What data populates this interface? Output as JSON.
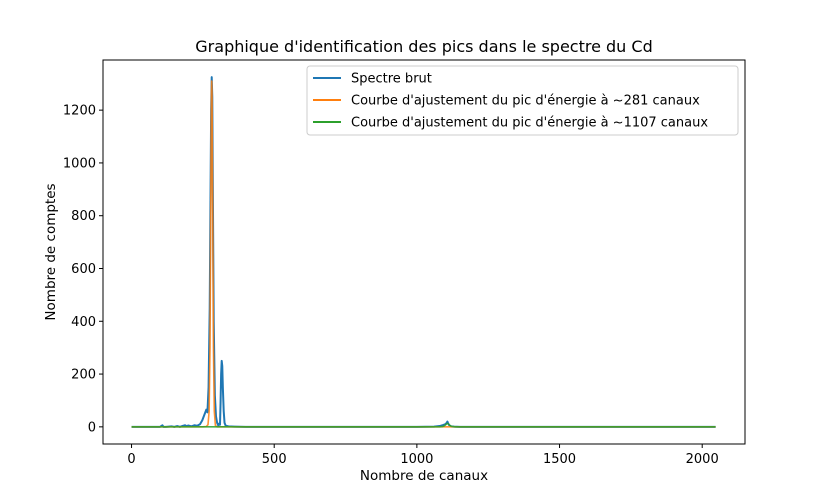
{
  "chart_data": {
    "type": "line",
    "title": "Graphique d'identification des pics dans le spectre du Cd",
    "xlabel": "Nombre de canaux",
    "ylabel": "Nombre de comptes",
    "xlim": [
      -100,
      2150
    ],
    "ylim": [
      -65,
      1390
    ],
    "xticks": [
      0,
      500,
      1000,
      1500,
      2000
    ],
    "yticks": [
      0,
      200,
      400,
      600,
      800,
      1000,
      1200
    ],
    "grid": false,
    "legend_position": "top-right",
    "series": [
      {
        "name": "Spectre brut",
        "color": "#1f77b4",
        "x": [
          0,
          100,
          108,
          112,
          120,
          140,
          150,
          160,
          170,
          180,
          188,
          192,
          200,
          210,
          220,
          230,
          240,
          248,
          255,
          262,
          266,
          270,
          274,
          277,
          279,
          281,
          283,
          285,
          288,
          292,
          296,
          300,
          304,
          307,
          310,
          312,
          314,
          316,
          318,
          320,
          323,
          326,
          330,
          340,
          360,
          400,
          500,
          600,
          700,
          800,
          900,
          1000,
          1060,
          1080,
          1090,
          1095,
          1100,
          1105,
          1107,
          1109,
          1112,
          1116,
          1120,
          1130,
          1150,
          1200,
          1400,
          1600,
          1800,
          2000,
          2047
        ],
        "y": [
          0,
          0,
          6,
          0,
          0,
          2,
          0,
          3,
          0,
          4,
          6,
          3,
          5,
          2,
          6,
          4,
          10,
          25,
          45,
          65,
          55,
          150,
          450,
          900,
          1200,
          1325,
          1250,
          900,
          400,
          120,
          40,
          15,
          5,
          12,
          8,
          90,
          200,
          250,
          230,
          150,
          60,
          15,
          4,
          2,
          1,
          0,
          0,
          0,
          0,
          0,
          0,
          0,
          1,
          3,
          6,
          8,
          10,
          16,
          20,
          15,
          8,
          4,
          2,
          1,
          0,
          0,
          0,
          0,
          0,
          0,
          0
        ]
      },
      {
        "name": "Courbe d'ajustement du pic d'énergie à ~281 canaux",
        "color": "#ff7f0e",
        "x": [
          0,
          250,
          262,
          268,
          272,
          275,
          277,
          279,
          280,
          281,
          282,
          283,
          285,
          287,
          290,
          294,
          300,
          320,
          2047
        ],
        "y": [
          0,
          0,
          1,
          8,
          60,
          300,
          700,
          1100,
          1270,
          1310,
          1270,
          1100,
          700,
          300,
          60,
          5,
          0,
          0,
          0
        ]
      },
      {
        "name": "Courbe d'ajustement du pic d'énergie à ~1107 canaux",
        "color": "#2ca02c",
        "x": [
          0,
          1080,
          1090,
          1095,
          1100,
          1104,
          1107,
          1110,
          1114,
          1119,
          1124,
          1135,
          2047
        ],
        "y": [
          0,
          0,
          1,
          3,
          7,
          11,
          13,
          11,
          7,
          3,
          1,
          0,
          0
        ]
      }
    ]
  }
}
